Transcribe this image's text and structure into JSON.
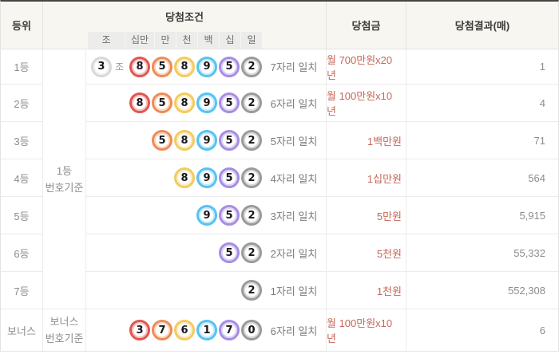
{
  "header": {
    "rank": "등위",
    "condition": "당첨조건",
    "prize": "당첨금",
    "result": "당첨결과(매)",
    "places": [
      "조",
      "십만",
      "만",
      "천",
      "백",
      "십",
      "일"
    ]
  },
  "basis": {
    "main_line1": "1등",
    "main_line2": "번호기준",
    "bonus_line1": "보너스",
    "bonus_line2": "번호기준"
  },
  "rows": [
    {
      "rank": "1등",
      "jo": "3",
      "jo_unit": "조",
      "balls": [
        "8",
        "5",
        "8",
        "9",
        "5",
        "2"
      ],
      "match": "7자리 일치",
      "prize": "월 700만원x20년",
      "count": "1"
    },
    {
      "rank": "2등",
      "balls": [
        "8",
        "5",
        "8",
        "9",
        "5",
        "2"
      ],
      "match": "6자리 일치",
      "prize": "월 100만원x10년",
      "count": "4"
    },
    {
      "rank": "3등",
      "balls": [
        "5",
        "8",
        "9",
        "5",
        "2"
      ],
      "match": "5자리 일치",
      "prize": "1백만원",
      "count": "71"
    },
    {
      "rank": "4등",
      "balls": [
        "8",
        "9",
        "5",
        "2"
      ],
      "match": "4자리 일치",
      "prize": "1십만원",
      "count": "564"
    },
    {
      "rank": "5등",
      "balls": [
        "9",
        "5",
        "2"
      ],
      "match": "3자리 일치",
      "prize": "5만원",
      "count": "5,915"
    },
    {
      "rank": "6등",
      "balls": [
        "5",
        "2"
      ],
      "match": "2자리 일치",
      "prize": "5천원",
      "count": "55,332"
    },
    {
      "rank": "7등",
      "balls": [
        "2"
      ],
      "match": "1자리 일치",
      "prize": "1천원",
      "count": "552,308"
    },
    {
      "rank": "보너스",
      "balls": [
        "3",
        "7",
        "6",
        "1",
        "7",
        "0"
      ],
      "match": "6자리 일치",
      "prize": "월 100만원x10년",
      "count": "6"
    }
  ],
  "colors": {
    "ball_ring_jo": "#d8d8d8",
    "ball_ring_100k": "#e25552",
    "ball_ring_10k": "#ef8b56",
    "ball_ring_1k": "#f3cb5e",
    "ball_ring_100": "#55c3f2",
    "ball_ring_10": "#a68de2",
    "ball_ring_1": "#9a9a9a",
    "prize_text": "#c5675a",
    "header_bg": "#f8f6f0",
    "top_border": "#454545"
  }
}
